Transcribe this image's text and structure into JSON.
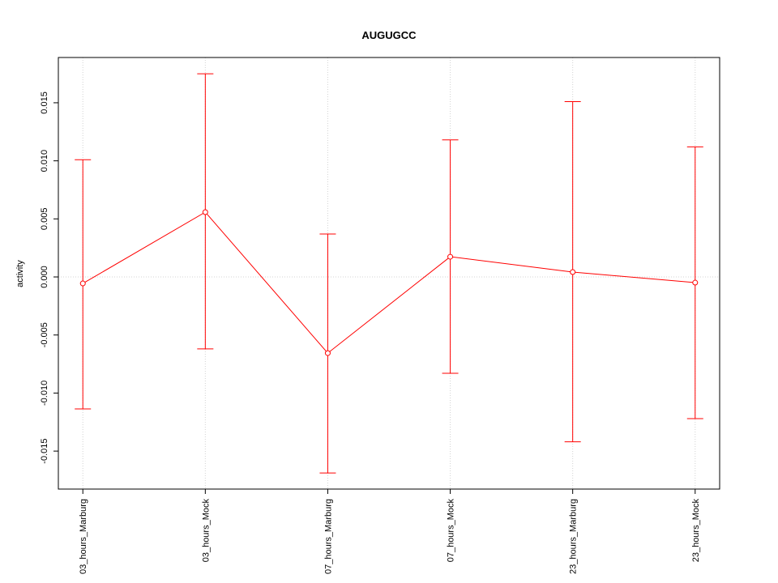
{
  "chart_data": {
    "type": "line",
    "title": "AUGUGCC",
    "ylabel": "activity",
    "categories": [
      "03_hours_Marburg",
      "03_hours_Mock",
      "07_hours_Marburg",
      "07_hours_Mock",
      "23_hours_Marburg",
      "23_hours_Mock"
    ],
    "series": [
      {
        "color": "#ff0000",
        "values": [
          -0.00056,
          0.00558,
          -0.00656,
          0.00174,
          0.00042,
          -0.00049
        ],
        "upper": [
          0.0101,
          0.0175,
          0.0037,
          0.0118,
          0.0151,
          0.0112
        ],
        "lower": [
          -0.01137,
          -0.0062,
          -0.01688,
          -0.0083,
          -0.0142,
          -0.0122
        ]
      }
    ],
    "xlim": [
      0.8,
      6.2
    ],
    "ylim": [
      -0.01827,
      0.0189
    ],
    "yticks": [
      {
        "value": -0.015,
        "label": "-0.015"
      },
      {
        "value": -0.01,
        "label": "-0.010"
      },
      {
        "value": -0.005,
        "label": "-0.005"
      },
      {
        "value": 0,
        "label": "0.000"
      },
      {
        "value": 0.005,
        "label": "0.005"
      },
      {
        "value": 0.01,
        "label": "0.010"
      },
      {
        "value": 0.015,
        "label": "0.015"
      }
    ],
    "grid": true,
    "refline": 0
  }
}
